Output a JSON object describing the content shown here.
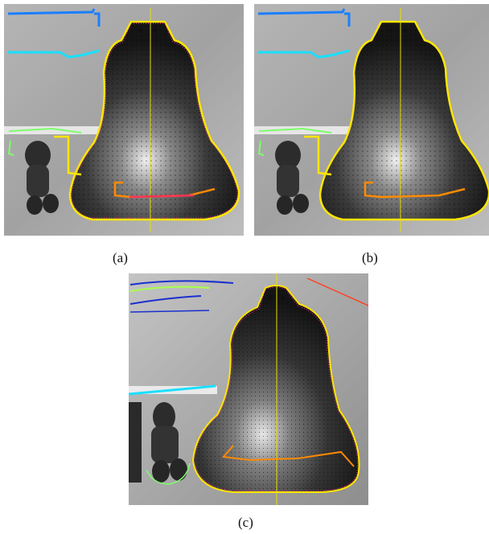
{
  "figure": {
    "panels": [
      {
        "id": "a",
        "caption": "(a)"
      },
      {
        "id": "b",
        "caption": "(b)"
      },
      {
        "id": "c",
        "caption": "(c)"
      }
    ]
  },
  "colors": {
    "contour_outer": "#ffe600",
    "contour_inner_dots": "#ff3399",
    "symmetry_axis": "#e8e000",
    "rim_curve": "#ff8a00",
    "rim_curve_alt": "#ff3355",
    "edge_blue": "#1a7fff",
    "edge_cyan": "#19e0ff",
    "edge_green": "#7dff6a",
    "edge_navy": "#1a2fcf",
    "edge_lime": "#a8ff4d",
    "edge_red": "#ff4020"
  }
}
